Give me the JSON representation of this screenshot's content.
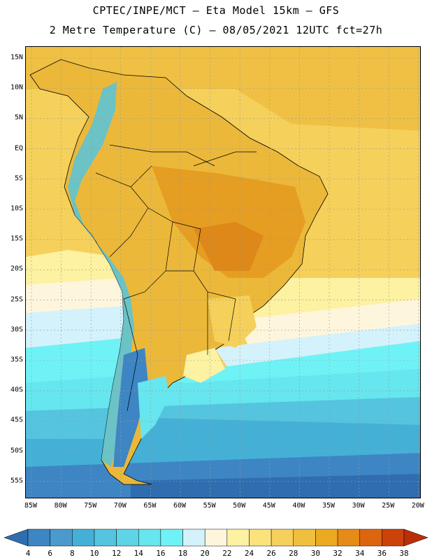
{
  "title": {
    "line1": "CPTEC/INPE/MCT –  Eta Model 15km – GFS",
    "line2": "2 Metre Temperature (C) – 08/05/2021 12UTC fct=27h"
  },
  "map": {
    "region": "South America",
    "lat_labels": [
      "15N",
      "10N",
      "5N",
      "EQ",
      "5S",
      "10S",
      "15S",
      "20S",
      "25S",
      "30S",
      "35S",
      "40S",
      "45S",
      "50S",
      "55S"
    ],
    "lon_labels": [
      "85W",
      "80W",
      "75W",
      "70W",
      "65W",
      "60W",
      "55W",
      "50W",
      "45W",
      "40W",
      "35W",
      "30W",
      "25W",
      "20W"
    ]
  },
  "colorbar": {
    "labels": [
      "4",
      "6",
      "8",
      "10",
      "12",
      "14",
      "16",
      "18",
      "20",
      "22",
      "24",
      "26",
      "28",
      "30",
      "32",
      "34",
      "36",
      "38"
    ],
    "colors": [
      "#2f6db0",
      "#3e85c4",
      "#4a9acd",
      "#45b0d6",
      "#55c4df",
      "#5fd4e6",
      "#66e6ee",
      "#6ff2f5",
      "#d4f2fb",
      "#fdf6dd",
      "#fdf1a2",
      "#fbe27a",
      "#f5d05a",
      "#efbf3e",
      "#ecaa20",
      "#e58b18",
      "#dd6510",
      "#cc420b",
      "#b93008"
    ]
  }
}
